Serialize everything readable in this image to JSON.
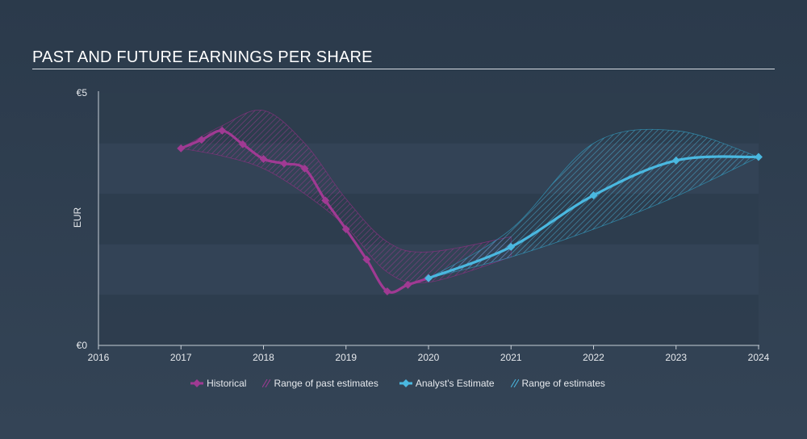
{
  "header": {
    "title": "PAST AND FUTURE EARNINGS PER SHARE"
  },
  "colors": {
    "historical": "#a03a93",
    "estimate": "#4ab8e0",
    "band_past": "#8a2f80",
    "band_future": "#2f95b8",
    "axis": "#c7ced6"
  },
  "chart_data": {
    "type": "line",
    "title": "PAST AND FUTURE EARNINGS PER SHARE",
    "xlabel": "",
    "ylabel": "EUR",
    "xlim": [
      2016,
      2024
    ],
    "ylim": [
      0,
      5
    ],
    "x_ticks": [
      "2016",
      "2017",
      "2018",
      "2019",
      "2020",
      "2021",
      "2022",
      "2023",
      "2024"
    ],
    "y_ticks": [
      {
        "value": 0,
        "label": "€0"
      },
      {
        "value": 5,
        "label": "€5"
      }
    ],
    "series": [
      {
        "name": "Historical",
        "points": [
          {
            "x": 2017.0,
            "y": 3.9
          },
          {
            "x": 2017.25,
            "y": 4.07
          },
          {
            "x": 2017.5,
            "y": 4.25
          },
          {
            "x": 2017.75,
            "y": 3.98
          },
          {
            "x": 2018.0,
            "y": 3.69
          },
          {
            "x": 2018.25,
            "y": 3.6
          },
          {
            "x": 2018.5,
            "y": 3.5
          },
          {
            "x": 2018.75,
            "y": 2.87
          },
          {
            "x": 2019.0,
            "y": 2.3
          },
          {
            "x": 2019.25,
            "y": 1.7
          },
          {
            "x": 2019.5,
            "y": 1.07
          },
          {
            "x": 2019.75,
            "y": 1.2
          },
          {
            "x": 2020.0,
            "y": 1.33
          }
        ]
      },
      {
        "name": "Analyst's Estimate",
        "points": [
          {
            "x": 2020.0,
            "y": 1.33
          },
          {
            "x": 2021.0,
            "y": 1.95
          },
          {
            "x": 2022.0,
            "y": 2.97
          },
          {
            "x": 2023.0,
            "y": 3.66
          },
          {
            "x": 2024.0,
            "y": 3.73
          }
        ]
      }
    ],
    "bands": [
      {
        "name": "Range of past estimates",
        "upper": [
          {
            "x": 2017.0,
            "y": 3.9
          },
          {
            "x": 2017.5,
            "y": 4.35
          },
          {
            "x": 2018.0,
            "y": 4.65
          },
          {
            "x": 2018.5,
            "y": 4.0
          },
          {
            "x": 2019.0,
            "y": 2.9
          },
          {
            "x": 2019.5,
            "y": 2.05
          },
          {
            "x": 2020.0,
            "y": 1.85
          },
          {
            "x": 2021.0,
            "y": 2.15
          }
        ],
        "lower": [
          {
            "x": 2017.0,
            "y": 3.9
          },
          {
            "x": 2017.5,
            "y": 3.75
          },
          {
            "x": 2018.0,
            "y": 3.5
          },
          {
            "x": 2018.5,
            "y": 3.0
          },
          {
            "x": 2019.0,
            "y": 2.35
          },
          {
            "x": 2019.5,
            "y": 1.45
          },
          {
            "x": 2020.0,
            "y": 1.25
          },
          {
            "x": 2021.0,
            "y": 1.75
          }
        ]
      },
      {
        "name": "Range of estimates",
        "upper": [
          {
            "x": 2020.0,
            "y": 1.33
          },
          {
            "x": 2021.0,
            "y": 2.3
          },
          {
            "x": 2022.0,
            "y": 4.0
          },
          {
            "x": 2023.0,
            "y": 4.25
          },
          {
            "x": 2024.0,
            "y": 3.73
          }
        ],
        "lower": [
          {
            "x": 2020.0,
            "y": 1.33
          },
          {
            "x": 2021.0,
            "y": 1.75
          },
          {
            "x": 2022.0,
            "y": 2.3
          },
          {
            "x": 2023.0,
            "y": 2.95
          },
          {
            "x": 2024.0,
            "y": 3.73
          }
        ]
      }
    ],
    "legend": {
      "placement": "bottom-center",
      "historical": "Historical",
      "past_range": "Range of past estimates",
      "estimate": "Analyst's Estimate",
      "future_range": "Range of estimates"
    }
  }
}
